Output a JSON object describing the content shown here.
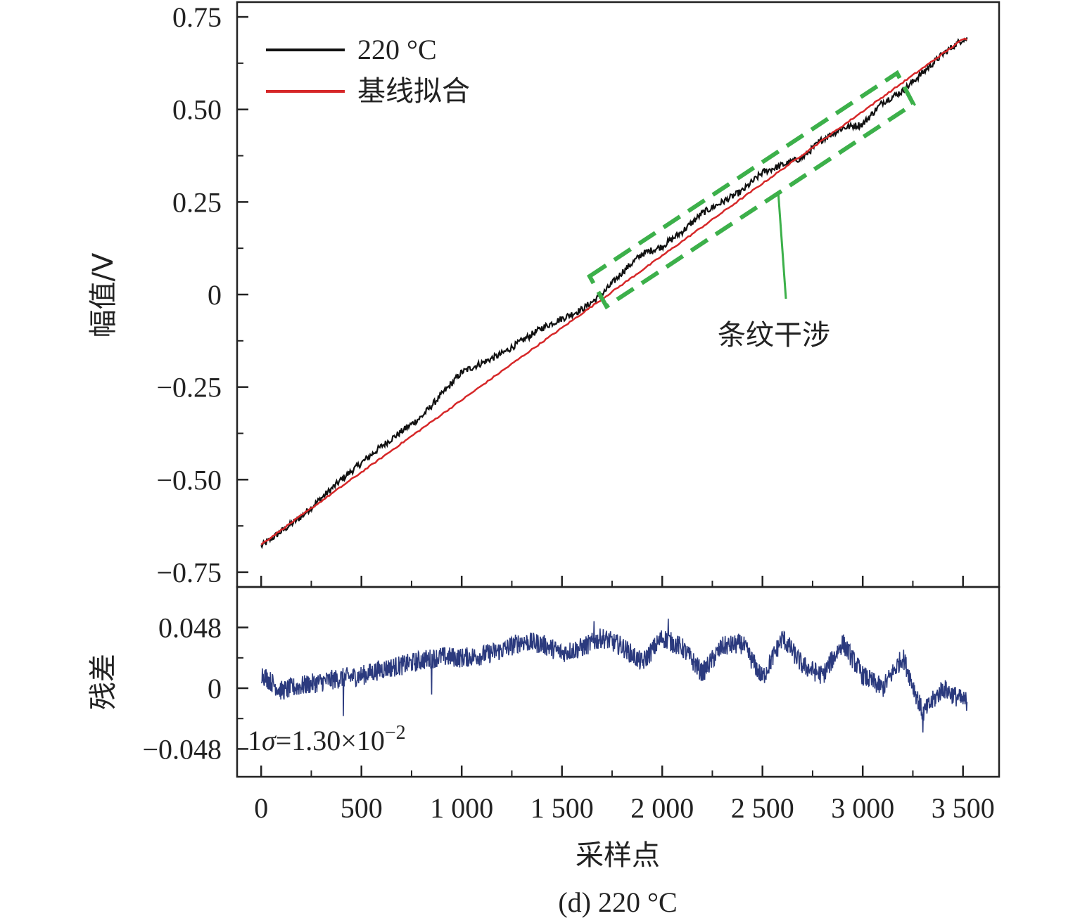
{
  "caption": "(d) 220 °C",
  "chart_data": [
    {
      "type": "line",
      "panel": "top",
      "ylabel": "幅值/V",
      "xlim": [
        -120,
        3680
      ],
      "ylim": [
        -0.79,
        0.79
      ],
      "yticks": [
        0.75,
        0.5,
        0.25,
        0,
        -0.25,
        -0.5,
        -0.75
      ],
      "ytick_labels": [
        "0.75",
        "0.50",
        "0.25",
        "0",
        "−0.25",
        "−0.50",
        "−0.75"
      ],
      "legend_position": "top-left",
      "series": [
        {
          "name": "220 °C",
          "color": "#111111",
          "x": [
            0,
            200,
            400,
            600,
            800,
            1000,
            1200,
            1400,
            1600,
            1700,
            1800,
            1900,
            2000,
            2100,
            2200,
            2300,
            2400,
            2500,
            2600,
            2700,
            2800,
            2900,
            3000,
            3100,
            3200,
            3300,
            3400,
            3500
          ],
          "y": [
            -0.68,
            -0.6,
            -0.5,
            -0.41,
            -0.33,
            -0.21,
            -0.16,
            -0.09,
            -0.04,
            0.0,
            0.06,
            0.11,
            0.13,
            0.17,
            0.22,
            0.25,
            0.28,
            0.33,
            0.35,
            0.37,
            0.42,
            0.45,
            0.46,
            0.52,
            0.55,
            0.6,
            0.65,
            0.69
          ]
        },
        {
          "name": "基线拟合",
          "color": "#d62728",
          "x": [
            0,
            3500
          ],
          "y": [
            -0.675,
            0.69
          ]
        }
      ],
      "annotation": {
        "text": "条纹干涉",
        "color": "#3cb04a",
        "x_start": 1650,
        "x_end": 3250
      }
    },
    {
      "type": "line",
      "panel": "bottom",
      "ylabel": "残差",
      "xlabel": "采样点",
      "xlim": [
        -120,
        3680
      ],
      "ylim": [
        -0.07,
        0.08
      ],
      "xticks": [
        0,
        500,
        1000,
        1500,
        2000,
        2500,
        3000,
        3500
      ],
      "xtick_labels": [
        "0",
        "500",
        "1 000",
        "1 500",
        "2 000",
        "2 500",
        "3 000",
        "3 500"
      ],
      "yticks": [
        0.048,
        0,
        -0.048
      ],
      "ytick_labels": [
        "0.048",
        "0",
        "−0.048"
      ],
      "sigma_prefix": "1",
      "sigma_symbol": "σ",
      "sigma_value": "=1.30×10",
      "sigma_exp": "−2",
      "series": [
        {
          "name": "",
          "color": "#2b3a7e",
          "x": [
            0,
            100,
            200,
            300,
            400,
            500,
            600,
            700,
            800,
            900,
            1000,
            1100,
            1200,
            1300,
            1400,
            1500,
            1600,
            1700,
            1800,
            1900,
            2000,
            2100,
            2200,
            2300,
            2400,
            2500,
            2600,
            2700,
            2800,
            2900,
            3000,
            3100,
            3200,
            3300,
            3400,
            3500
          ],
          "y": [
            0.012,
            -0.002,
            0.002,
            0.005,
            0.008,
            0.01,
            0.015,
            0.018,
            0.022,
            0.025,
            0.024,
            0.026,
            0.03,
            0.037,
            0.035,
            0.028,
            0.032,
            0.04,
            0.033,
            0.02,
            0.04,
            0.032,
            0.012,
            0.033,
            0.035,
            0.008,
            0.04,
            0.018,
            0.01,
            0.036,
            0.01,
            0.0,
            0.025,
            -0.02,
            0.0,
            -0.01
          ],
          "spikes": [
            [
              410,
              -0.022
            ],
            [
              850,
              -0.005
            ],
            [
              1660,
              0.053
            ],
            [
              2030,
              0.055
            ],
            [
              3300,
              -0.035
            ]
          ]
        }
      ]
    }
  ]
}
